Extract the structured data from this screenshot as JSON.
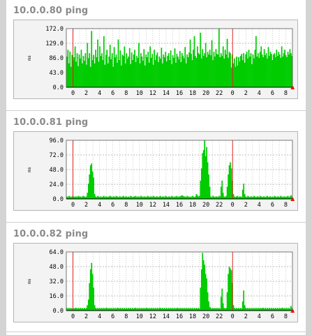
{
  "charts": [
    {
      "title": "10.0.0.80 ping"
    },
    {
      "title": "10.0.0.81 ping"
    },
    {
      "title": "10.0.0.82 ping"
    }
  ],
  "colors": {
    "bars": "#00cc00",
    "bar_edge": "#009a00",
    "midnight": "#e02020",
    "grid": "#7a7a7a",
    "frame": "#b5b5b5",
    "marker": "#ff0000"
  },
  "chart_data": [
    {
      "type": "bar",
      "title": "10.0.0.80 ping",
      "ylabel": "ms",
      "ylim": [
        0,
        172
      ],
      "yticks": [
        "172.0",
        "129.0",
        "86.0",
        "43.0",
        "0.0"
      ],
      "xticks": [
        "0",
        "2",
        "4",
        "6",
        "8",
        "10",
        "12",
        "14",
        "16",
        "18",
        "20",
        "22",
        "0",
        "2",
        "4",
        "6",
        "8"
      ],
      "x_range_hours": [
        -1,
        33
      ],
      "midnight_lines_hours": [
        0,
        24
      ],
      "grid": true,
      "series": [
        {
          "values": [
            90,
            110,
            70,
            105,
            60,
            95,
            80,
            88,
            120,
            75,
            100,
            62,
            96,
            84,
            110,
            70,
            92,
            78,
            100,
            66,
            130,
            85,
            100,
            60,
            165,
            80,
            95,
            70,
            110,
            88,
            140,
            75,
            120,
            92,
            100,
            80,
            150,
            66,
            95,
            110,
            70,
            90,
            125,
            82,
            100,
            60,
            118,
            88,
            96,
            72,
            140,
            80,
            108,
            64,
            96,
            92,
            120,
            70,
            100,
            84,
            90,
            115,
            68,
            102,
            80,
            96,
            110,
            74,
            92,
            86,
            130,
            70,
            100,
            90,
            78,
            112,
            64,
            96,
            88,
            104,
            72,
            120,
            86,
            98,
            66,
            110,
            80,
            94,
            102,
            74,
            90,
            84,
            116,
            70,
            96,
            88,
            104,
            76,
            92,
            100,
            80,
            108,
            68,
            94,
            86,
            114,
            72,
            98,
            90,
            82,
            106,
            74,
            100,
            92,
            84,
            118,
            70,
            96,
            88,
            102,
            140,
            98,
            80,
            110,
            150,
            92,
            86,
            120,
            100,
            96,
            160,
            84,
            112,
            92,
            100,
            130,
            88,
            104,
            96,
            110,
            94,
            138,
            80,
            104,
            90,
            112,
            98,
            96,
            176,
            88,
            100,
            92,
            120,
            84,
            110,
            96,
            142,
            86,
            104,
            100,
            58,
            96,
            70,
            84,
            60,
            90,
            64,
            88,
            76,
            92,
            98,
            80,
            100,
            72,
            96,
            104,
            84,
            110,
            90,
            100,
            68,
            96,
            84,
            110,
            150,
            90,
            100,
            86,
            104,
            120,
            96,
            88,
            112,
            94,
            100,
            84,
            118,
            92,
            104,
            98,
            80,
            96,
            100,
            88,
            110,
            92,
            104,
            96,
            86,
            120,
            90,
            100,
            110,
            94,
            88,
            104,
            96,
            112,
            100,
            92
          ]
        }
      ]
    },
    {
      "type": "bar",
      "title": "10.0.0.81 ping",
      "ylabel": "ms",
      "ylim": [
        0,
        96
      ],
      "yticks": [
        "96.0",
        "72.0",
        "48.0",
        "24.0",
        "0.0"
      ],
      "xticks": [
        "0",
        "2",
        "4",
        "6",
        "8",
        "10",
        "12",
        "14",
        "16",
        "18",
        "20",
        "22",
        "0",
        "2",
        "4",
        "6",
        "8"
      ],
      "x_range_hours": [
        -1,
        33
      ],
      "midnight_lines_hours": [
        0,
        24
      ],
      "grid": true,
      "series": [
        {
          "values": [
            4,
            3,
            5,
            4,
            3,
            4,
            5,
            3,
            4,
            4,
            3,
            5,
            4,
            4,
            3,
            4,
            5,
            4,
            3,
            4,
            10,
            25,
            40,
            55,
            58,
            45,
            35,
            8,
            4,
            3,
            5,
            4,
            3,
            4,
            3,
            4,
            5,
            3,
            4,
            4,
            3,
            4,
            5,
            4,
            3,
            4,
            4,
            3,
            5,
            4,
            3,
            4,
            4,
            3,
            4,
            5,
            3,
            4,
            4,
            3,
            4,
            3,
            5,
            4,
            3,
            4,
            4,
            5,
            3,
            4,
            4,
            3,
            5,
            4,
            3,
            4,
            4,
            3,
            4,
            5,
            3,
            4,
            4,
            3,
            5,
            4,
            3,
            4,
            4,
            3,
            4,
            5,
            3,
            4,
            4,
            3,
            5,
            4,
            3,
            4,
            4,
            3,
            5,
            4,
            3,
            4,
            4,
            5,
            3,
            4,
            4,
            5,
            6,
            5,
            4,
            4,
            3,
            5,
            4,
            3,
            4,
            3,
            5,
            4,
            3,
            4,
            8,
            6,
            4,
            5,
            30,
            50,
            75,
            80,
            96,
            70,
            85,
            60,
            40,
            20,
            4,
            3,
            5,
            4,
            3,
            4,
            4,
            3,
            5,
            4,
            20,
            30,
            10,
            4,
            3,
            5,
            20,
            40,
            55,
            60,
            50,
            30,
            8,
            4,
            3,
            4,
            5,
            3,
            4,
            4,
            3,
            15,
            25,
            8,
            4,
            3,
            5,
            4,
            3,
            4,
            4,
            3,
            5,
            4,
            3,
            4,
            4,
            3,
            5,
            4,
            3,
            4,
            4,
            3,
            4,
            5,
            3,
            4,
            4,
            3,
            4,
            3,
            5,
            4,
            3,
            4,
            4,
            3,
            5,
            4,
            3,
            4,
            4,
            3,
            4,
            5,
            3,
            4,
            6,
            4
          ]
        }
      ]
    },
    {
      "type": "bar",
      "title": "10.0.0.82 ping",
      "ylabel": "ms",
      "ylim": [
        0,
        64
      ],
      "yticks": [
        "64.0",
        "48.0",
        "32.0",
        "16.0",
        "0.0"
      ],
      "xticks": [
        "0",
        "2",
        "4",
        "6",
        "8",
        "10",
        "12",
        "14",
        "16",
        "18",
        "20",
        "22",
        "0",
        "2",
        "4",
        "6",
        "8"
      ],
      "x_range_hours": [
        -1,
        33
      ],
      "midnight_lines_hours": [
        0,
        24
      ],
      "grid": true,
      "series": [
        {
          "values": [
            3,
            2,
            3,
            2,
            3,
            2,
            3,
            2,
            3,
            3,
            2,
            3,
            2,
            3,
            2,
            3,
            2,
            3,
            2,
            3,
            6,
            12,
            30,
            45,
            52,
            40,
            25,
            6,
            3,
            2,
            3,
            2,
            3,
            2,
            3,
            2,
            3,
            2,
            3,
            3,
            2,
            3,
            2,
            3,
            2,
            3,
            2,
            3,
            2,
            3,
            3,
            2,
            3,
            2,
            3,
            2,
            3,
            2,
            3,
            2,
            3,
            2,
            3,
            2,
            3,
            2,
            3,
            3,
            2,
            3,
            2,
            3,
            2,
            3,
            2,
            3,
            2,
            3,
            3,
            2,
            3,
            2,
            3,
            2,
            3,
            2,
            3,
            2,
            3,
            2,
            3,
            3,
            2,
            3,
            2,
            3,
            2,
            3,
            2,
            3,
            2,
            3,
            2,
            3,
            2,
            3,
            2,
            3,
            3,
            2,
            3,
            2,
            3,
            2,
            3,
            2,
            3,
            2,
            3,
            2,
            3,
            2,
            3,
            2,
            3,
            2,
            3,
            2,
            3,
            2,
            25,
            45,
            63,
            55,
            50,
            40,
            35,
            20,
            10,
            4,
            3,
            2,
            3,
            2,
            3,
            2,
            3,
            2,
            3,
            2,
            15,
            24,
            8,
            3,
            2,
            3,
            20,
            40,
            48,
            46,
            44,
            30,
            6,
            3,
            2,
            3,
            2,
            3,
            2,
            3,
            2,
            10,
            22,
            6,
            3,
            2,
            3,
            2,
            3,
            2,
            3,
            2,
            3,
            2,
            3,
            2,
            3,
            2,
            3,
            2,
            3,
            3,
            2,
            3,
            2,
            3,
            2,
            3,
            2,
            3,
            2,
            3,
            2,
            3,
            2,
            3,
            2,
            3,
            2,
            3,
            3,
            2,
            3,
            2,
            3,
            2,
            3,
            2,
            5,
            3
          ]
        }
      ]
    }
  ]
}
